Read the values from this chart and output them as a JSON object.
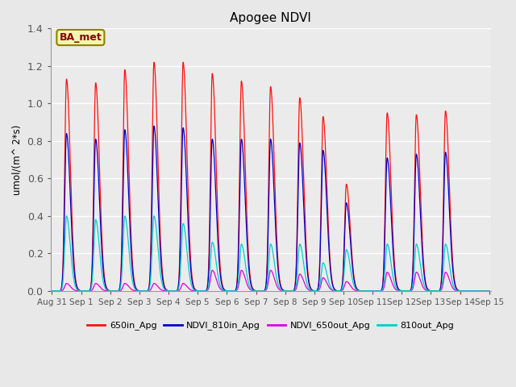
{
  "title": "Apogee NDVI",
  "ylabel": "umol/(m^ 2*s)",
  "bg_color": "#e8e8e8",
  "plot_bg_color": "#ebebeb",
  "annotation_text": "BA_met",
  "annotation_bg": "#f5f5b0",
  "annotation_border": "#8B8000",
  "ylim": [
    0,
    1.4
  ],
  "colors": {
    "650in_Apg": "#ff1010",
    "NDVI_810in_Apg": "#0000cc",
    "NDVI_650out_Apg": "#dd00dd",
    "810out_Apg": "#00cccc"
  },
  "series_peaks": {
    "650in_Apg": [
      1.13,
      1.11,
      1.18,
      1.22,
      1.22,
      1.16,
      1.12,
      1.09,
      1.03,
      0.93,
      0.57,
      0.95,
      0.94,
      0.96
    ],
    "NDVI_810in_Apg": [
      0.84,
      0.81,
      0.86,
      0.88,
      0.87,
      0.81,
      0.81,
      0.81,
      0.79,
      0.75,
      0.47,
      0.71,
      0.73,
      0.74
    ],
    "NDVI_650out_Apg": [
      0.04,
      0.04,
      0.04,
      0.04,
      0.04,
      0.11,
      0.11,
      0.11,
      0.09,
      0.07,
      0.05,
      0.1,
      0.1,
      0.1
    ],
    "810out_Apg": [
      0.4,
      0.38,
      0.4,
      0.4,
      0.36,
      0.26,
      0.25,
      0.25,
      0.25,
      0.15,
      0.22,
      0.25,
      0.25,
      0.25
    ]
  },
  "peak_days": [
    0.5,
    1.5,
    2.5,
    3.5,
    4.5,
    5.5,
    6.5,
    7.5,
    8.5,
    9.3,
    10.1,
    11.5,
    12.5,
    13.5
  ],
  "tick_labels": [
    "Aug 31",
    "Sep 1",
    "Sep 2",
    "Sep 3",
    "Sep 4",
    "Sep 5",
    "Sep 6",
    "Sep 7",
    "Sep 8",
    "Sep 9",
    "Sep 10",
    "Sep 11",
    "Sep 12",
    "Sep 13",
    "Sep 14",
    "Sep 15"
  ],
  "legend_labels": [
    "650in_Apg",
    "NDVI_810in_Apg",
    "NDVI_650out_Apg",
    "810out_Apg"
  ]
}
